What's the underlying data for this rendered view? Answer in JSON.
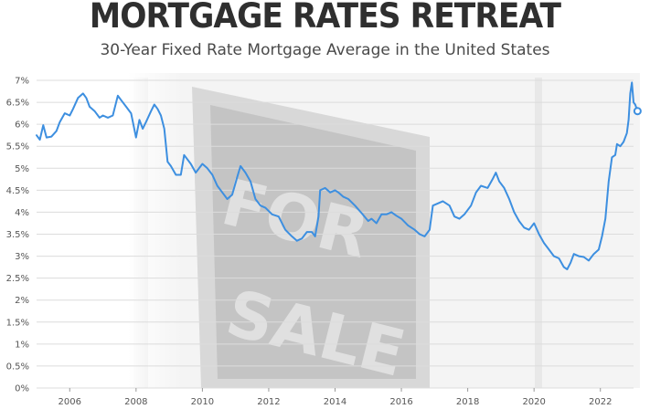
{
  "title": "MORTGAGE RATES RETREAT",
  "subtitle": "30-Year Fixed Rate Mortgage Average in the United States",
  "background_image_text": [
    "FOR",
    "SALE"
  ],
  "chart_data": {
    "type": "line",
    "title": "MORTGAGE RATES RETREAT",
    "subtitle": "30-Year Fixed Rate Mortgage Average in the United States",
    "xlabel": "",
    "ylabel": "",
    "xlim": [
      2005.0,
      2023.0
    ],
    "ylim": [
      0,
      7
    ],
    "grid": true,
    "legend": "none",
    "line_color": "#3d8fe0",
    "y_ticks": [
      0,
      0.5,
      1,
      1.5,
      2,
      2.5,
      3,
      3.5,
      4,
      4.5,
      5,
      5.5,
      6,
      6.5,
      7
    ],
    "y_tick_labels": [
      "0%",
      "0.5%",
      "1%",
      "1.5%",
      "2%",
      "2.5%",
      "3%",
      "3.5%",
      "4%",
      "4.5%",
      "5%",
      "5.5%",
      "6%",
      "6.5%",
      "7%"
    ],
    "x_ticks": [
      2006,
      2008,
      2010,
      2012,
      2014,
      2016,
      2018,
      2020,
      2022
    ],
    "x_tick_labels": [
      "2006",
      "2008",
      "2010",
      "2012",
      "2014",
      "2016",
      "2018",
      "2020",
      "2022"
    ],
    "series": [
      {
        "x": [
          2005.0,
          2005.1,
          2005.2,
          2005.3,
          2005.45,
          2005.6,
          2005.7,
          2005.85,
          2006.0,
          2006.1,
          2006.25,
          2006.4,
          2006.5,
          2006.6,
          2006.75,
          2006.9,
          2007.0,
          2007.15,
          2007.3,
          2007.45,
          2007.55,
          2007.7,
          2007.85,
          2008.0,
          2008.1,
          2008.2,
          2008.3,
          2008.45,
          2008.55,
          2008.65,
          2008.75,
          2008.85,
          2008.95,
          2009.05,
          2009.2,
          2009.35,
          2009.45,
          2009.55,
          2009.65,
          2009.8,
          2010.0,
          2010.15,
          2010.3,
          2010.45,
          2010.6,
          2010.75,
          2010.9,
          2011.05,
          2011.15,
          2011.3,
          2011.45,
          2011.6,
          2011.75,
          2011.9,
          2012.1,
          2012.3,
          2012.5,
          2012.7,
          2012.85,
          2013.0,
          2013.15,
          2013.3,
          2013.4,
          2013.5,
          2013.55,
          2013.7,
          2013.85,
          2014.0,
          2014.1,
          2014.25,
          2014.4,
          2014.6,
          2014.8,
          2015.0,
          2015.1,
          2015.25,
          2015.4,
          2015.55,
          2015.7,
          2015.85,
          2016.0,
          2016.2,
          2016.4,
          2016.55,
          2016.7,
          2016.85,
          2016.95,
          2017.1,
          2017.25,
          2017.45,
          2017.6,
          2017.75,
          2017.9,
          2018.1,
          2018.25,
          2018.4,
          2018.6,
          2018.75,
          2018.85,
          2018.95,
          2019.1,
          2019.25,
          2019.4,
          2019.55,
          2019.7,
          2019.85,
          2020.0,
          2020.15,
          2020.3,
          2020.45,
          2020.6,
          2020.75,
          2020.9,
          2021.0,
          2021.1,
          2021.2,
          2021.35,
          2021.5,
          2021.65,
          2021.8,
          2021.95,
          2022.05,
          2022.15,
          2022.25,
          2022.35,
          2022.45,
          2022.5,
          2022.6,
          2022.7,
          2022.8,
          2022.85,
          2022.9,
          2022.95,
          2023.0,
          2023.05,
          2023.12
        ],
        "y": [
          5.75,
          5.65,
          5.98,
          5.7,
          5.72,
          5.85,
          6.05,
          6.25,
          6.2,
          6.35,
          6.6,
          6.7,
          6.6,
          6.4,
          6.3,
          6.15,
          6.2,
          6.15,
          6.2,
          6.65,
          6.55,
          6.4,
          6.25,
          5.7,
          6.1,
          5.9,
          6.05,
          6.3,
          6.45,
          6.35,
          6.2,
          5.9,
          5.15,
          5.05,
          4.85,
          4.85,
          5.3,
          5.2,
          5.1,
          4.9,
          5.1,
          5.0,
          4.85,
          4.6,
          4.45,
          4.3,
          4.4,
          4.8,
          5.05,
          4.9,
          4.7,
          4.3,
          4.15,
          4.1,
          3.95,
          3.9,
          3.6,
          3.45,
          3.35,
          3.4,
          3.55,
          3.55,
          3.45,
          3.9,
          4.5,
          4.55,
          4.45,
          4.5,
          4.45,
          4.35,
          4.3,
          4.15,
          3.98,
          3.8,
          3.85,
          3.75,
          3.95,
          3.95,
          4.0,
          3.92,
          3.85,
          3.7,
          3.6,
          3.5,
          3.45,
          3.6,
          4.15,
          4.2,
          4.25,
          4.15,
          3.9,
          3.85,
          3.95,
          4.15,
          4.45,
          4.6,
          4.55,
          4.75,
          4.9,
          4.7,
          4.55,
          4.3,
          4.0,
          3.8,
          3.65,
          3.6,
          3.75,
          3.5,
          3.3,
          3.15,
          3.0,
          2.95,
          2.75,
          2.7,
          2.85,
          3.05,
          3.0,
          2.98,
          2.9,
          3.05,
          3.15,
          3.45,
          3.85,
          4.7,
          5.25,
          5.3,
          5.55,
          5.5,
          5.6,
          5.8,
          6.1,
          6.7,
          6.95,
          6.5,
          6.45,
          6.3
        ]
      }
    ],
    "endpoint_marker": {
      "x": 2023.12,
      "y": 6.3
    }
  }
}
